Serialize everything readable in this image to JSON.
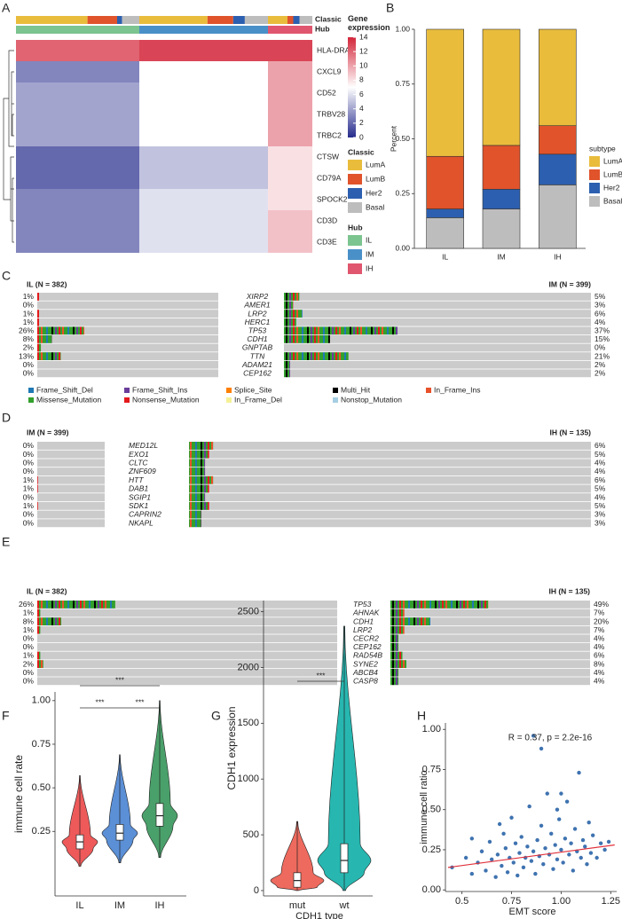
{
  "chart_data": [
    {
      "type": "heatmap",
      "panel": "A",
      "classic_label": "Classic",
      "hub_label": "Hub",
      "genes": [
        "HLA-DRA",
        "CXCL9",
        "CD52",
        "TRBV28",
        "TRBC2",
        "CTSW",
        "CD79A",
        "SPOCK2",
        "CD3D",
        "CD3E"
      ],
      "groups": [
        {
          "name": "IL",
          "color": "#7cc490",
          "values": [
            12,
            3,
            4,
            4,
            4,
            2,
            2,
            3,
            3,
            3
          ]
        },
        {
          "name": "IM",
          "color": "#4a90c8",
          "values": [
            13,
            7,
            7,
            7,
            7,
            5,
            5,
            6,
            6,
            6
          ]
        },
        {
          "name": "IH",
          "color": "#e0566e",
          "values": [
            13,
            10,
            10,
            10,
            10,
            8,
            8,
            8,
            9,
            9
          ]
        }
      ],
      "colorbar": {
        "title": "Gene expression",
        "lim": [
          0,
          14
        ],
        "ticks": [
          0,
          2,
          4,
          6,
          8,
          10,
          12,
          14
        ],
        "colors": [
          "#262b8c",
          "#ffffff",
          "#d3263a"
        ]
      }
    },
    {
      "type": "stacked_bar",
      "panel": "B",
      "categories": [
        "IL",
        "IM",
        "IH"
      ],
      "series": [
        {
          "name": "Basal",
          "color": "#bdbdbd",
          "values": [
            0.14,
            0.18,
            0.29
          ]
        },
        {
          "name": "Her2",
          "color": "#2c5faf",
          "values": [
            0.04,
            0.09,
            0.14
          ]
        },
        {
          "name": "LumB",
          "color": "#e0532b",
          "values": [
            0.24,
            0.2,
            0.13
          ]
        },
        {
          "name": "LumA",
          "color": "#e9bc3c",
          "values": [
            0.58,
            0.53,
            0.44
          ]
        }
      ],
      "ylim": [
        0,
        1
      ],
      "yticks": [
        {
          "value": 0,
          "label": "0.00"
        },
        0.25,
        {
          "value": 0.5,
          "label": "0.50"
        },
        0.75,
        {
          "value": 1,
          "label": "1.00"
        }
      ],
      "ylabel": "Percent",
      "legend_title": "subtype"
    },
    {
      "type": "oncoplot",
      "panel": "C",
      "genes": [
        "XIRP2",
        "AMER1",
        "LRP2",
        "HERC1",
        "TP53",
        "CDH1",
        "GNPTAB",
        "TTN",
        "ADAM21",
        "CEP162"
      ],
      "series": [
        {
          "name": "IL (N = 382)",
          "values": [
            1,
            0,
            1,
            1,
            26,
            8,
            2,
            13,
            0,
            0
          ],
          "value_labels": [
            "1%",
            "0%",
            "1%",
            "1%",
            "26%",
            "8%",
            "2%",
            "13%",
            "0%",
            "0%"
          ]
        },
        {
          "name": "IM (N = 399)",
          "values": [
            5,
            3,
            6,
            4,
            37,
            15,
            0,
            21,
            2,
            2
          ],
          "value_labels": [
            "5%",
            "3%",
            "6%",
            "4%",
            "37%",
            "15%",
            "0%",
            "21%",
            "2%",
            "2%"
          ]
        }
      ],
      "legend": [
        {
          "name": "Frame_Shift_Del",
          "color": "#1f78b4"
        },
        {
          "name": "Frame_Shift_Ins",
          "color": "#6a3d9a"
        },
        {
          "name": "Splice_Site",
          "color": "#ff7f00"
        },
        {
          "name": "Multi_Hit",
          "color": "#000000"
        },
        {
          "name": "In_Frame_Ins",
          "color": "#e8512a"
        },
        {
          "name": "Missense_Mutation",
          "color": "#33a02c"
        },
        {
          "name": "Nonsense_Mutation",
          "color": "#e31a1c"
        },
        {
          "name": "In_Frame_Del",
          "color": "#f5f096"
        },
        {
          "name": "Nonstop_Mutation",
          "color": "#a6cee3"
        }
      ]
    },
    {
      "type": "oncoplot",
      "panel": "D",
      "genes": [
        "MED12L",
        "EXO1",
        "CLTC",
        "ZNF609",
        "HTT",
        "DAB1",
        "SGIP1",
        "SDK1",
        "CAPRIN2",
        "NKAPL"
      ],
      "series": [
        {
          "name": "IM (N = 399)",
          "values": [
            0,
            0,
            0,
            0,
            1,
            1,
            0,
            1,
            0,
            0
          ],
          "value_labels": [
            "0%",
            "0%",
            "0%",
            "0%",
            "1%",
            "1%",
            "0%",
            "1%",
            "0%",
            "0%"
          ]
        },
        {
          "name": "IH (N = 135)",
          "values": [
            6,
            5,
            4,
            4,
            6,
            5,
            4,
            5,
            3,
            3
          ],
          "value_labels": [
            "6%",
            "5%",
            "4%",
            "4%",
            "6%",
            "5%",
            "4%",
            "5%",
            "3%",
            "3%"
          ]
        }
      ]
    },
    {
      "type": "oncoplot",
      "panel": "E",
      "genes": [
        "TP53",
        "AHNAK",
        "CDH1",
        "LRP2",
        "CECR2",
        "CEP162",
        "RAD54B",
        "SYNE2",
        "ABCB4",
        "CASP8"
      ],
      "series": [
        {
          "name": "IL (N = 382)",
          "values": [
            26,
            1,
            8,
            1,
            0,
            0,
            1,
            2,
            0,
            0
          ],
          "value_labels": [
            "26%",
            "1%",
            "8%",
            "1%",
            "0%",
            "0%",
            "1%",
            "2%",
            "0%",
            "0%"
          ]
        },
        {
          "name": "IH (N = 135)",
          "values": [
            49,
            7,
            20,
            7,
            4,
            4,
            6,
            8,
            4,
            4
          ],
          "value_labels": [
            "49%",
            "7%",
            "20%",
            "7%",
            "4%",
            "4%",
            "6%",
            "8%",
            "4%",
            "4%"
          ]
        }
      ]
    },
    {
      "type": "violin",
      "panel": "F",
      "categories": [
        "IL",
        "IM",
        "IH"
      ],
      "colors": [
        "#ee5a5a",
        "#5b8fd6",
        "#4aa06a"
      ],
      "min": [
        0.05,
        0.07,
        0.1
      ],
      "q1": [
        0.15,
        0.2,
        0.28
      ],
      "median": [
        0.19,
        0.24,
        0.34
      ],
      "q3": [
        0.23,
        0.29,
        0.41
      ],
      "max": [
        0.57,
        0.69,
        1.0
      ],
      "ylim": [
        -0.12,
        1.05
      ],
      "yticks": [
        0.25,
        {
          "value": 0.5,
          "label": "0.50"
        },
        0.75,
        {
          "value": 1,
          "label": "1.00"
        }
      ],
      "ylabel": "immune cell rate",
      "annotations": [
        "***",
        "***",
        "***"
      ]
    },
    {
      "type": "violin",
      "panel": "G",
      "categories": [
        "mut",
        "wt"
      ],
      "colors": [
        "#ee6a5e",
        "#27b7b0"
      ],
      "min": [
        0,
        0
      ],
      "q1": [
        30,
        160
      ],
      "median": [
        90,
        270
      ],
      "q3": [
        160,
        420
      ],
      "max": [
        620,
        2370
      ],
      "ylim": [
        -48,
        2600
      ],
      "yticks": [
        0,
        500,
        1000,
        1500,
        2000,
        2500
      ],
      "xlabel": "CDH1 type",
      "ylabel": "CDH1 expression",
      "annotations": [
        "***"
      ]
    },
    {
      "type": "scatter",
      "panel": "H",
      "annotation": "R = 0.37, p = 2.2e-16",
      "xlabel": "EMT score",
      "ylabel": "immune cell ratio",
      "color": "#3f73b0",
      "fit_color": "#e0303a",
      "x": [
        0.45,
        0.52,
        0.55,
        0.58,
        0.6,
        0.62,
        0.64,
        0.65,
        0.67,
        0.68,
        0.7,
        0.71,
        0.72,
        0.73,
        0.74,
        0.75,
        0.76,
        0.77,
        0.78,
        0.79,
        0.8,
        0.81,
        0.82,
        0.83,
        0.84,
        0.85,
        0.86,
        0.87,
        0.88,
        0.89,
        0.9,
        0.9,
        0.91,
        0.92,
        0.93,
        0.94,
        0.95,
        0.96,
        0.97,
        0.98,
        0.99,
        1.0,
        1.01,
        1.02,
        1.03,
        1.04,
        1.05,
        1.06,
        1.07,
        1.08,
        1.09,
        1.1,
        1.11,
        1.12,
        1.13,
        1.14,
        1.15,
        1.16,
        1.18,
        1.2,
        1.22,
        1.24,
        0.86,
        0.55,
        0.69,
        0.98,
        1.0
      ],
      "y": [
        0.14,
        0.2,
        0.1,
        0.17,
        0.24,
        0.12,
        0.3,
        0.19,
        0.08,
        0.22,
        0.15,
        0.35,
        0.26,
        0.11,
        0.2,
        0.45,
        0.17,
        0.29,
        0.09,
        0.23,
        0.33,
        0.14,
        0.2,
        0.27,
        0.52,
        0.18,
        0.24,
        0.1,
        0.31,
        0.21,
        0.88,
        0.4,
        0.16,
        0.26,
        0.6,
        0.22,
        0.35,
        0.13,
        0.28,
        0.19,
        0.44,
        0.25,
        0.17,
        0.32,
        0.55,
        0.22,
        0.29,
        0.12,
        0.38,
        0.24,
        0.73,
        0.2,
        0.31,
        0.27,
        0.16,
        0.42,
        0.23,
        0.34,
        0.2,
        0.29,
        0.25,
        0.3,
        0.96,
        0.32,
        0.41,
        0.5,
        0.6
      ],
      "fit_x": [
        0.43,
        1.27
      ],
      "fit_y": [
        0.14,
        0.28
      ],
      "xlim": [
        0.43,
        1.28
      ],
      "ylim": [
        -0.01,
        1.04
      ],
      "xticks": [
        0.5,
        0.75,
        {
          "value": 1,
          "label": "1.00"
        },
        1.25
      ],
      "yticks": [
        {
          "value": 0,
          "label": "0.00"
        },
        0.25,
        {
          "value": 0.5,
          "label": "0.50"
        },
        0.75,
        {
          "value": 1,
          "label": "1.00"
        }
      ]
    }
  ]
}
